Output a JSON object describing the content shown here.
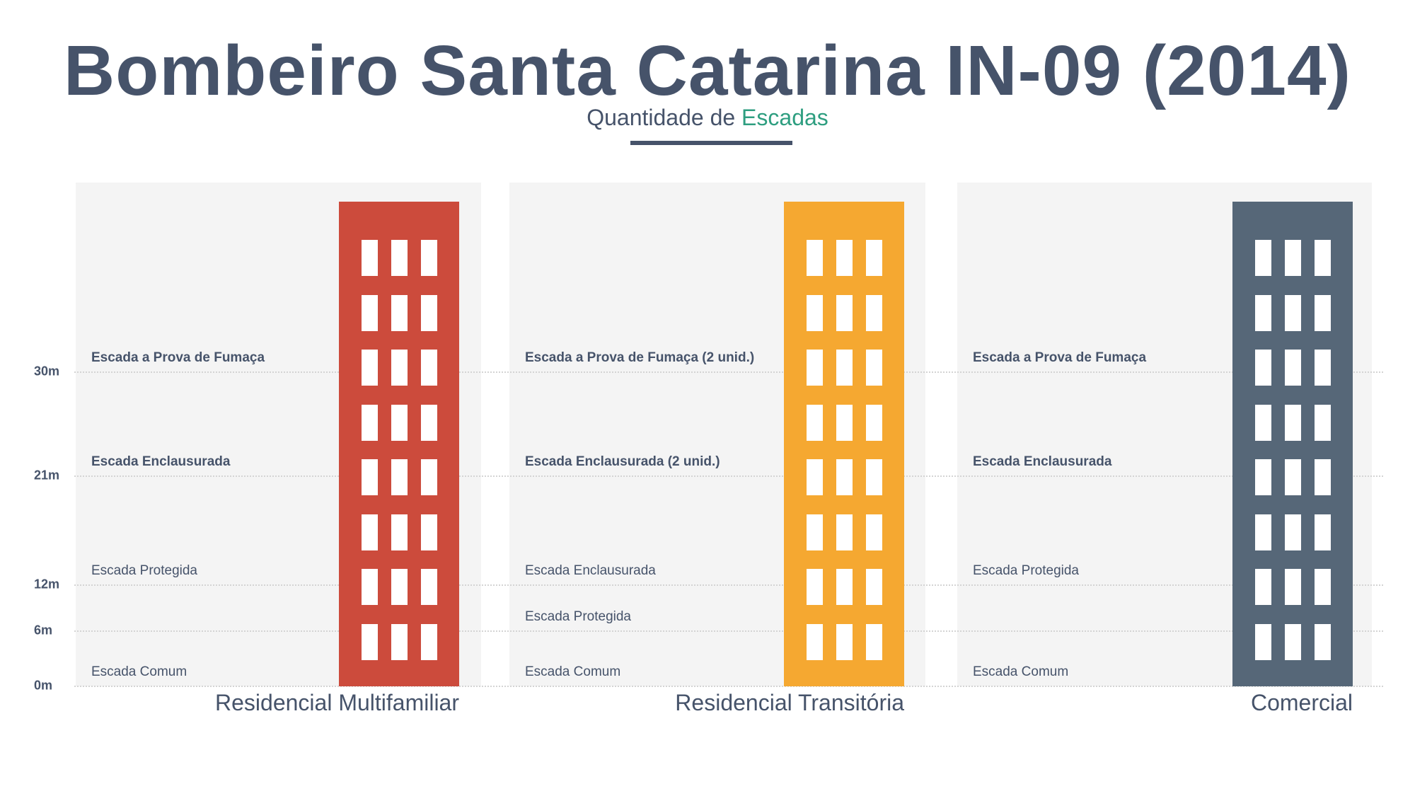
{
  "title": "Bombeiro Santa Catarina IN-09 (2014)",
  "subtitle": {
    "prefix": "Quantidade de",
    "accent": "Escadas"
  },
  "colors": {
    "title": "#46536a",
    "accent": "#2e9e80",
    "panel": "#f4f4f4"
  },
  "chart_data": {
    "type": "infographic",
    "yaxis_unit": "m",
    "y_ticks": [
      {
        "value": 30,
        "label": "30m"
      },
      {
        "value": 21,
        "label": "21m"
      },
      {
        "value": 12,
        "label": "12m"
      },
      {
        "value": 6,
        "label": "6m"
      },
      {
        "value": 0,
        "label": "0m"
      }
    ],
    "grid": true,
    "categories": [
      {
        "name": "Residencial Multifamiliar",
        "color": "#cc4b3c",
        "levels": [
          {
            "height": 30,
            "label": "Escada a Prova de Fumaça",
            "bold": true
          },
          {
            "height": 21,
            "label": "Escada Enclausurada",
            "bold": true
          },
          {
            "height": 12,
            "label": "Escada Protegida",
            "bold": false
          },
          {
            "height": 0,
            "label": "Escada Comum",
            "bold": false
          }
        ]
      },
      {
        "name": "Residencial Transitória",
        "color": "#f5a831",
        "levels": [
          {
            "height": 30,
            "label": "Escada a Prova de Fumaça (2 unid.)",
            "bold": true
          },
          {
            "height": 21,
            "label": "Escada Enclausurada (2 unid.)",
            "bold": true
          },
          {
            "height": 12,
            "label": "Escada Enclausurada",
            "bold": false
          },
          {
            "height": 6,
            "label": "Escada Protegida",
            "bold": false
          },
          {
            "height": 0,
            "label": "Escada Comum",
            "bold": false
          }
        ]
      },
      {
        "name": "Comercial",
        "color": "#566778",
        "levels": [
          {
            "height": 30,
            "label": "Escada a Prova de Fumaça",
            "bold": true
          },
          {
            "height": 21,
            "label": "Escada Enclausurada",
            "bold": true
          },
          {
            "height": 12,
            "label": "Escada Protegida",
            "bold": false
          },
          {
            "height": 0,
            "label": "Escada Comum",
            "bold": false
          }
        ]
      }
    ]
  }
}
